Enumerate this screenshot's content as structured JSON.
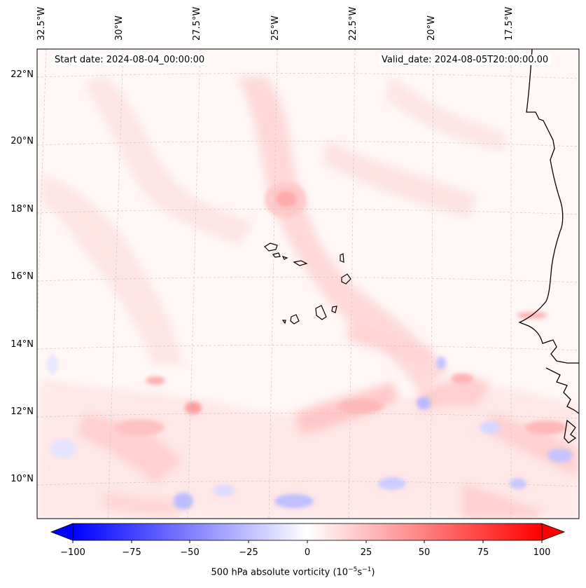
{
  "map": {
    "start_date_label": "Start date: 2024-08-04_00:00:00",
    "valid_date_label": "Valid_date: 2024-08-05T20:00:00.00",
    "lon_labels": [
      "32.5°W",
      "30°W",
      "27.5°W",
      "25°W",
      "22.5°W",
      "20°W",
      "17.5°W"
    ],
    "lat_labels": [
      "22°N",
      "20°N",
      "18°N",
      "16°N",
      "14°N",
      "12°N",
      "10°N"
    ]
  },
  "colorbar": {
    "ticks": [
      "−100",
      "−75",
      "−50",
      "−25",
      "0",
      "25",
      "50",
      "75",
      "100"
    ],
    "label": "500 hPa absolute vorticity (10",
    "label_exp1": "−5",
    "label_mid": "s",
    "label_exp2": "−1",
    "label_end": ")",
    "colors": {
      "negative": "#0000ff",
      "neutral": "#ffffff",
      "positive": "#ff0000"
    }
  }
}
